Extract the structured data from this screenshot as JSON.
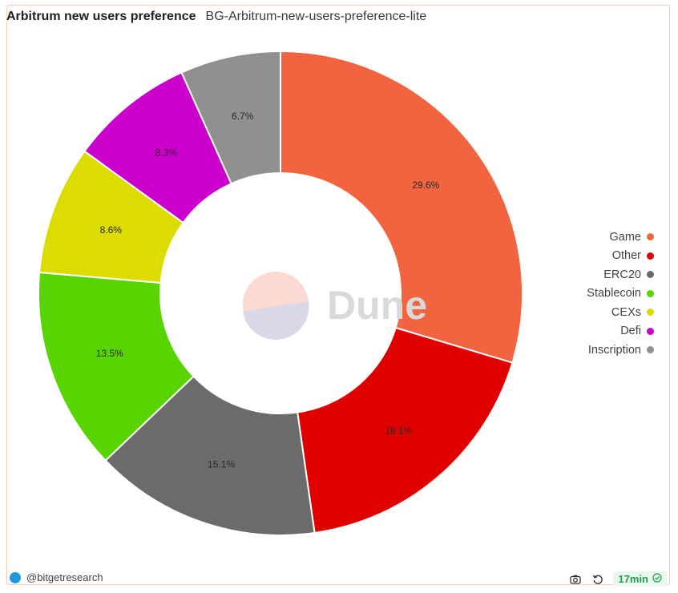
{
  "header": {
    "title": "Arbitrum new users preference",
    "subtitle": "BG-Arbitrum-new-users-preference-lite"
  },
  "watermark": {
    "text": "Dune"
  },
  "chart_data": {
    "type": "pie",
    "donut": true,
    "legend_position": "right",
    "slices": [
      {
        "label": "Game",
        "value": 29.6,
        "display": "29.6%",
        "color": "#f26440"
      },
      {
        "label": "Other",
        "value": 18.1,
        "display": "18.1%",
        "color": "#e10000"
      },
      {
        "label": "ERC20",
        "value": 15.1,
        "display": "15.1%",
        "color": "#6b6b6b"
      },
      {
        "label": "Stablecoin",
        "value": 13.5,
        "display": "13.5%",
        "color": "#58d400"
      },
      {
        "label": "CEXs",
        "value": 8.6,
        "display": "8.6%",
        "color": "#dcdc00"
      },
      {
        "label": "Defi",
        "value": 8.3,
        "display": "8.3%",
        "color": "#cc00cc"
      },
      {
        "label": "Inscription",
        "value": 6.7,
        "display": "6.7%",
        "color": "#909090"
      }
    ]
  },
  "footer": {
    "handle": "@bitgetresearch",
    "refresh_badge": "17min",
    "icons": [
      "camera-icon",
      "refresh-icon",
      "check-circle-icon"
    ]
  }
}
